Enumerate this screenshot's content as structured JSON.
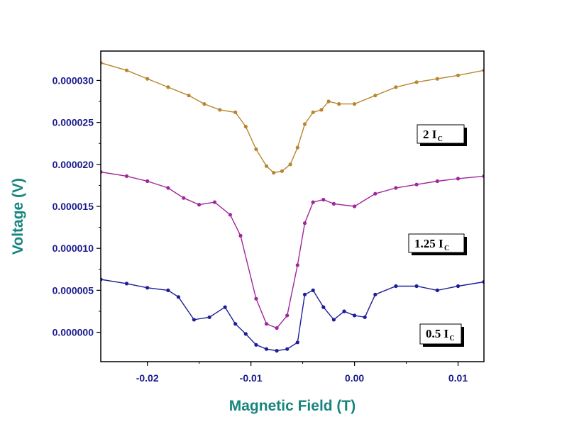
{
  "chart_data": {
    "type": "scatter",
    "title": "",
    "xlabel": "Magnetic Field (T)",
    "ylabel": "Voltage (V)",
    "xlim": [
      -0.0245,
      0.0125
    ],
    "ylim": [
      -3.5e-06,
      3.35e-05
    ],
    "x_ticks": [
      {
        "value": -0.02,
        "label": "-0.02"
      },
      {
        "value": -0.01,
        "label": "-0.01"
      },
      {
        "value": 0.0,
        "label": "0.00"
      },
      {
        "value": 0.01,
        "label": "0.01"
      }
    ],
    "y_ticks": [
      {
        "value": 0.0,
        "label": "0.000000"
      },
      {
        "value": 5e-06,
        "label": "0.000005"
      },
      {
        "value": 1e-05,
        "label": "0.000010"
      },
      {
        "value": 1.5e-05,
        "label": "0.000015"
      },
      {
        "value": 2e-05,
        "label": "0.000020"
      },
      {
        "value": 2.5e-05,
        "label": "0.000025"
      },
      {
        "value": 3e-05,
        "label": "0.000030"
      }
    ],
    "grid": false,
    "series": [
      {
        "name": "2 I_C",
        "label_main": "2  I",
        "label_sub": "C",
        "color": "#b8862e",
        "x": [
          -0.0245,
          -0.022,
          -0.02,
          -0.018,
          -0.016,
          -0.0145,
          -0.013,
          -0.0115,
          -0.0105,
          -0.0095,
          -0.0085,
          -0.0078,
          -0.007,
          -0.0062,
          -0.0055,
          -0.0048,
          -0.004,
          -0.0032,
          -0.0025,
          -0.0015,
          0.0,
          0.002,
          0.004,
          0.006,
          0.008,
          0.01,
          0.0125
        ],
        "y": [
          3.21e-05,
          3.12e-05,
          3.02e-05,
          2.92e-05,
          2.82e-05,
          2.72e-05,
          2.65e-05,
          2.62e-05,
          2.45e-05,
          2.18e-05,
          1.98e-05,
          1.9e-05,
          1.92e-05,
          2e-05,
          2.2e-05,
          2.48e-05,
          2.62e-05,
          2.65e-05,
          2.75e-05,
          2.72e-05,
          2.72e-05,
          2.82e-05,
          2.92e-05,
          2.98e-05,
          3.02e-05,
          3.06e-05,
          3.12e-05
        ]
      },
      {
        "name": "1.25 I_C",
        "label_main": "1.25 I",
        "label_sub": "C",
        "color": "#a0279a",
        "x": [
          -0.0245,
          -0.022,
          -0.02,
          -0.018,
          -0.0165,
          -0.015,
          -0.0135,
          -0.012,
          -0.011,
          -0.0095,
          -0.0085,
          -0.0075,
          -0.0065,
          -0.0055,
          -0.0048,
          -0.004,
          -0.003,
          -0.002,
          0.0,
          0.002,
          0.004,
          0.006,
          0.008,
          0.01,
          0.0125
        ],
        "y": [
          1.91e-05,
          1.86e-05,
          1.8e-05,
          1.72e-05,
          1.6e-05,
          1.52e-05,
          1.55e-05,
          1.4e-05,
          1.15e-05,
          4e-06,
          1e-06,
          5e-07,
          2e-06,
          8e-06,
          1.3e-05,
          1.55e-05,
          1.58e-05,
          1.53e-05,
          1.5e-05,
          1.65e-05,
          1.72e-05,
          1.76e-05,
          1.8e-05,
          1.83e-05,
          1.86e-05
        ]
      },
      {
        "name": "0.5 I_C",
        "label_main": "0.5 I",
        "label_sub": "C",
        "color": "#1d1d99",
        "x": [
          -0.0245,
          -0.022,
          -0.02,
          -0.018,
          -0.017,
          -0.0155,
          -0.014,
          -0.0125,
          -0.0115,
          -0.0105,
          -0.0095,
          -0.0085,
          -0.0075,
          -0.0065,
          -0.0055,
          -0.0048,
          -0.004,
          -0.003,
          -0.002,
          -0.001,
          0.0,
          0.001,
          0.002,
          0.004,
          0.006,
          0.008,
          0.01,
          0.0125
        ],
        "y": [
          6.3e-06,
          5.8e-06,
          5.3e-06,
          5e-06,
          4.2e-06,
          1.5e-06,
          1.8e-06,
          3e-06,
          1e-06,
          -2e-07,
          -1.5e-06,
          -2e-06,
          -2.2e-06,
          -2e-06,
          -1.2e-06,
          4.5e-06,
          5e-06,
          3e-06,
          1.5e-06,
          2.5e-06,
          2e-06,
          1.8e-06,
          4.5e-06,
          5.5e-06,
          5.5e-06,
          5e-06,
          5.5e-06,
          6e-06
        ]
      }
    ]
  }
}
